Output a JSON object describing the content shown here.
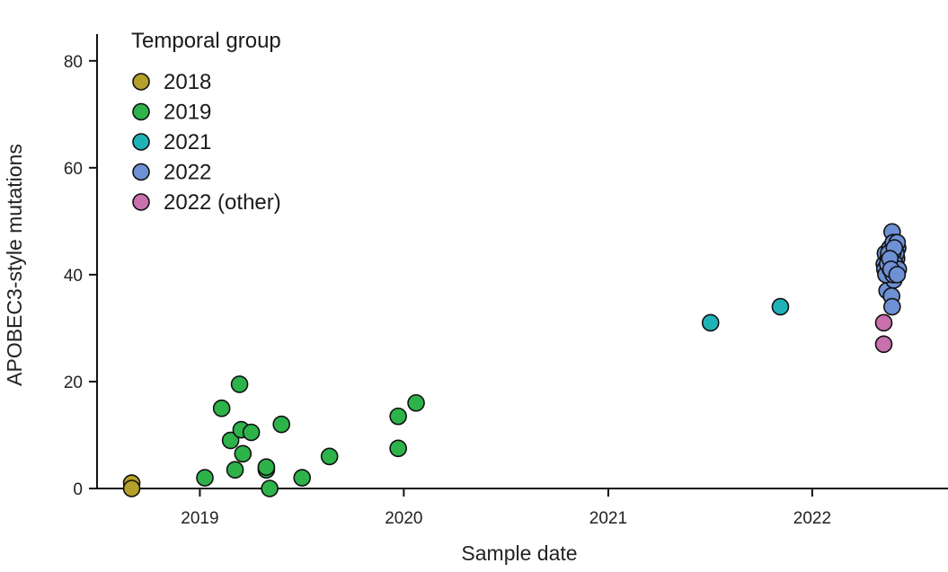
{
  "chart_data": {
    "type": "scatter",
    "xlabel": "Sample date",
    "ylabel": "APOBEC3-style mutations",
    "x_ticks": [
      "2019",
      "2020",
      "2021",
      "2022"
    ],
    "y_ticks": [
      0,
      20,
      40,
      60,
      80
    ],
    "xlim": [
      "2018-07-01",
      "2022-09-01"
    ],
    "ylim": [
      0,
      85
    ],
    "grid": false,
    "legend": {
      "title": "Temporal group",
      "placement": "top-left"
    },
    "series": [
      {
        "name": "2018",
        "color": "#b5a12a",
        "x": [
          "2018-09-01",
          "2018-09-01"
        ],
        "y": [
          1,
          0
        ]
      },
      {
        "name": "2019",
        "color": "#2db34a",
        "x": [
          "2019-01-10",
          "2019-02-09",
          "2019-02-25",
          "2019-03-05",
          "2019-03-13",
          "2019-03-16",
          "2019-03-19",
          "2019-04-03",
          "2019-04-30",
          "2019-04-30",
          "2019-05-06",
          "2019-05-27",
          "2019-07-03",
          "2019-08-21",
          "2019-12-22",
          "2019-12-22",
          "2020-01-23"
        ],
        "y": [
          2,
          15,
          9,
          3.5,
          19.5,
          11,
          6.5,
          10.5,
          3.5,
          4,
          0,
          12,
          2,
          6,
          7.5,
          13.5,
          16
        ]
      },
      {
        "name": "2021",
        "color": "#1fb3b8",
        "x": [
          "2021-07-03",
          "2021-11-05"
        ],
        "y": [
          31,
          34
        ]
      },
      {
        "name": "2022",
        "color": "#6e90d4",
        "x": [
          "2022-05-10",
          "2022-05-12",
          "2022-05-14",
          "2022-05-16",
          "2022-05-18",
          "2022-05-20",
          "2022-05-22",
          "2022-05-24",
          "2022-05-26",
          "2022-05-28",
          "2022-05-30",
          "2022-06-01",
          "2022-06-03",
          "2022-05-11",
          "2022-05-15",
          "2022-05-19",
          "2022-05-23",
          "2022-05-27",
          "2022-05-31",
          "2022-06-02",
          "2022-05-13",
          "2022-05-17",
          "2022-05-21",
          "2022-05-25",
          "2022-05-29",
          "2022-06-04",
          "2022-05-24",
          "2022-05-26",
          "2022-05-18",
          "2022-05-16",
          "2022-05-28",
          "2022-05-20",
          "2022-05-22",
          "2022-06-02"
        ],
        "y": [
          42,
          44,
          40,
          41,
          43,
          45,
          40,
          48,
          46,
          41,
          42,
          43,
          45,
          41,
          37,
          42,
          36,
          39,
          44,
          46,
          40,
          43,
          41,
          44,
          42,
          41,
          34,
          40,
          44,
          42,
          45,
          43,
          41,
          40
        ]
      },
      {
        "name": "2022 (other)",
        "color": "#c970ae",
        "x": [
          "2022-05-09",
          "2022-05-09"
        ],
        "y": [
          31,
          27
        ]
      }
    ]
  }
}
